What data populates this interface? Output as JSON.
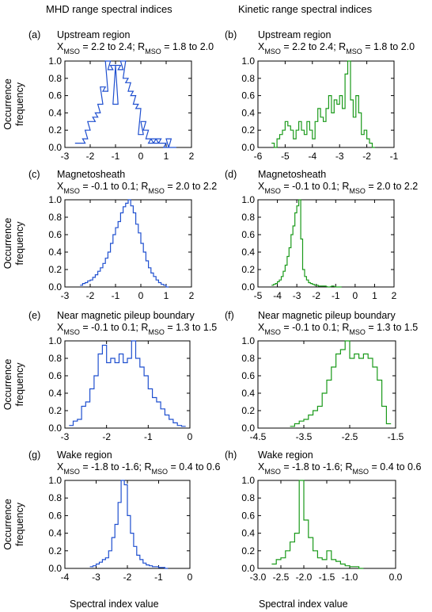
{
  "column_titles": [
    "MHD range spectral indices",
    "Kinetic range spectral indices"
  ],
  "ylabel": [
    "Occurrence",
    "frequency"
  ],
  "xlabel": "Spectral index value",
  "colors": {
    "mhd": "#1f4fcf",
    "kinetic": "#1a9a1a"
  },
  "chart_data": [
    {
      "type": "line",
      "step": true,
      "letter": "(a)",
      "title": "Upstream region",
      "subtitle": [
        "X",
        "MSO",
        " = 2.2  to 2.4; R",
        "MSO",
        " = 1.8 to 2.0"
      ],
      "xlim": [
        -3,
        2
      ],
      "xticks": [
        -3,
        -2,
        -1,
        0,
        1,
        2
      ],
      "ylim": [
        0,
        1
      ],
      "yticks": [
        "0.0",
        "0.2",
        "0.4",
        "0.6",
        "0.8",
        "1.0"
      ],
      "series": [
        {
          "color": "#1f4fcf",
          "x": [
            -2.6,
            -2.4,
            -2.3,
            -2.2,
            -2.1,
            -2.0,
            -1.9,
            -1.8,
            -1.7,
            -1.6,
            -1.5,
            -1.4,
            -1.3,
            -1.2,
            -1.1,
            -1.0,
            -0.9,
            -0.8,
            -0.7,
            -0.6,
            -0.5,
            -0.4,
            -0.3,
            -0.2,
            -0.1,
            0.0,
            0.1,
            0.2,
            0.3,
            0.4,
            0.5,
            0.6,
            0.7,
            0.8,
            0.9,
            1.0,
            1.1,
            1.2
          ],
          "y": [
            0.05,
            0.05,
            0.1,
            0.2,
            0.3,
            0.3,
            0.35,
            0.4,
            0.5,
            0.7,
            0.65,
            1.0,
            0.9,
            0.95,
            0.5,
            0.95,
            0.9,
            1.0,
            0.8,
            0.75,
            0.65,
            0.6,
            0.5,
            0.45,
            0.15,
            0.3,
            0.2,
            0.1,
            0.05,
            0.1,
            0.05,
            0.1,
            0.05,
            0.05,
            0.0,
            0.1,
            0.0,
            0.0
          ]
        }
      ]
    },
    {
      "type": "line",
      "step": true,
      "letter": "(b)",
      "title": "Upstream region",
      "subtitle": [
        "X",
        "MSO",
        " = 2.2  to 2.4; R",
        "MSO",
        " = 1.8 to 2.0"
      ],
      "xlim": [
        -6,
        -1
      ],
      "xticks": [
        -6,
        -5,
        -4,
        -3,
        -2,
        -1
      ],
      "ylim": [
        0,
        1
      ],
      "yticks": [
        "0.0",
        "0.2",
        "0.4",
        "0.6",
        "0.8",
        "1.0"
      ],
      "series": [
        {
          "color": "#1a9a1a",
          "x": [
            -5.5,
            -5.4,
            -5.3,
            -5.2,
            -5.1,
            -5.0,
            -4.9,
            -4.8,
            -4.7,
            -4.6,
            -4.5,
            -4.4,
            -4.3,
            -4.2,
            -4.1,
            -4.0,
            -3.9,
            -3.8,
            -3.7,
            -3.6,
            -3.5,
            -3.4,
            -3.3,
            -3.2,
            -3.1,
            -3.0,
            -2.9,
            -2.8,
            -2.7,
            -2.6,
            -2.5,
            -2.4,
            -2.3,
            -2.2,
            -2.1,
            -2.0,
            -1.9,
            -1.8
          ],
          "y": [
            0.05,
            0.0,
            0.1,
            0.15,
            0.2,
            0.3,
            0.25,
            0.2,
            0.1,
            0.2,
            0.3,
            0.2,
            0.15,
            0.3,
            0.2,
            0.1,
            0.3,
            0.45,
            0.35,
            0.3,
            0.45,
            0.6,
            0.4,
            0.55,
            0.5,
            0.6,
            0.45,
            0.85,
            1.0,
            0.55,
            0.35,
            0.6,
            0.4,
            0.15,
            0.2,
            0.1,
            0.05,
            0.0
          ]
        }
      ]
    },
    {
      "type": "line",
      "step": true,
      "letter": "(c)",
      "title": "Magnetosheath",
      "subtitle": [
        "X",
        "MSO",
        " = -0.1  to 0.1; R",
        "MSO",
        " = 2.0 to 2.2"
      ],
      "xlim": [
        -3,
        2
      ],
      "xticks": [
        -3,
        -2,
        -1,
        0,
        1,
        2
      ],
      "ylim": [
        0,
        1
      ],
      "yticks": [
        "0.0",
        "0.2",
        "0.4",
        "0.6",
        "0.8",
        "1.0"
      ],
      "series": [
        {
          "color": "#1f4fcf",
          "x": [
            -2.4,
            -2.3,
            -2.2,
            -2.1,
            -2.0,
            -1.9,
            -1.8,
            -1.7,
            -1.6,
            -1.5,
            -1.4,
            -1.3,
            -1.2,
            -1.1,
            -1.0,
            -0.9,
            -0.8,
            -0.7,
            -0.6,
            -0.5,
            -0.4,
            -0.3,
            -0.2,
            -0.1,
            0.0,
            0.1,
            0.2,
            0.3,
            0.4,
            0.5,
            0.6,
            0.7,
            0.8,
            0.9,
            1.0
          ],
          "y": [
            0.02,
            0.04,
            0.05,
            0.07,
            0.08,
            0.11,
            0.14,
            0.18,
            0.22,
            0.27,
            0.33,
            0.4,
            0.5,
            0.6,
            0.68,
            0.75,
            0.85,
            0.92,
            0.96,
            1.0,
            0.93,
            0.85,
            0.72,
            0.62,
            0.5,
            0.4,
            0.3,
            0.22,
            0.16,
            0.12,
            0.08,
            0.05,
            0.03,
            0.02,
            0.0
          ]
        }
      ]
    },
    {
      "type": "line",
      "step": true,
      "letter": "(d)",
      "title": "Magnetosheath",
      "subtitle": [
        "X",
        "MSO",
        " = -0.1  to 0.1; R",
        "MSO",
        " = 2.0 to 2.2"
      ],
      "xlim": [
        -5,
        2
      ],
      "xticks": [
        -5,
        -4,
        -3,
        -2,
        -1,
        0,
        1,
        2
      ],
      "ylim": [
        0,
        1
      ],
      "yticks": [
        "0.0",
        "0.2",
        "0.4",
        "0.6",
        "0.8",
        "1.0"
      ],
      "series": [
        {
          "color": "#1a9a1a",
          "x": [
            -4.3,
            -4.2,
            -4.1,
            -4.0,
            -3.9,
            -3.8,
            -3.7,
            -3.6,
            -3.5,
            -3.4,
            -3.3,
            -3.2,
            -3.1,
            -3.0,
            -2.9,
            -2.8,
            -2.7,
            -2.6,
            -2.5,
            -2.4,
            -2.3,
            -2.2,
            -2.1,
            -2.0,
            -1.9,
            -1.8,
            -1.6,
            -1.4,
            -1.2,
            -1.0,
            -0.8
          ],
          "y": [
            0.02,
            0.03,
            0.04,
            0.06,
            0.08,
            0.12,
            0.18,
            0.25,
            0.35,
            0.45,
            0.6,
            0.7,
            0.85,
            0.93,
            1.0,
            0.55,
            0.2,
            0.12,
            0.08,
            0.05,
            0.04,
            0.03,
            0.02,
            0.02,
            0.01,
            0.01,
            0.01,
            0.0,
            0.01,
            0.0,
            0.0
          ]
        }
      ]
    },
    {
      "type": "line",
      "step": true,
      "letter": "(e)",
      "title": "Near magnetic pileup boundary",
      "subtitle": [
        "X",
        "MSO",
        " = -0.1  to 0.1; R",
        "MSO",
        " = 1.3 to 1.5"
      ],
      "xlim": [
        -3,
        0
      ],
      "xticks": [
        -3,
        -2,
        -1,
        0
      ],
      "ylim": [
        0,
        1
      ],
      "yticks": [
        "0.0",
        "0.2",
        "0.4",
        "0.6",
        "0.8",
        "1.0"
      ],
      "series": [
        {
          "color": "#1f4fcf",
          "x": [
            -2.9,
            -2.8,
            -2.7,
            -2.6,
            -2.5,
            -2.4,
            -2.3,
            -2.2,
            -2.1,
            -2.0,
            -1.9,
            -1.8,
            -1.7,
            -1.6,
            -1.5,
            -1.4,
            -1.3,
            -1.2,
            -1.1,
            -1.0,
            -0.9,
            -0.8,
            -0.7,
            -0.6,
            -0.5,
            -0.4,
            -0.3,
            -0.2
          ],
          "y": [
            0.03,
            0.08,
            0.1,
            0.25,
            0.3,
            0.45,
            0.6,
            0.85,
            0.95,
            0.75,
            0.8,
            0.75,
            0.85,
            0.75,
            0.8,
            1.0,
            0.8,
            0.7,
            0.6,
            0.45,
            0.35,
            0.3,
            0.22,
            0.15,
            0.1,
            0.06,
            0.03,
            0.02
          ]
        }
      ]
    },
    {
      "type": "line",
      "step": true,
      "letter": "(f)",
      "title": "Near magnetic pileup boundary",
      "subtitle": [
        "X",
        "MSO",
        " = -0.1  to 0.1; R",
        "MSO",
        " = 1.3 to 1.5"
      ],
      "xlim": [
        -4.5,
        -1.5
      ],
      "xticks": [
        -4.5,
        -3.5,
        -2.5,
        -1.5
      ],
      "ylim": [
        0,
        1
      ],
      "yticks": [
        "0.0",
        "0.2",
        "0.4",
        "0.6",
        "0.8",
        "1.0"
      ],
      "series": [
        {
          "color": "#1a9a1a",
          "x": [
            -3.8,
            -3.7,
            -3.6,
            -3.5,
            -3.4,
            -3.3,
            -3.2,
            -3.1,
            -3.0,
            -2.9,
            -2.8,
            -2.7,
            -2.6,
            -2.5,
            -2.4,
            -2.3,
            -2.2,
            -2.1,
            -2.0,
            -1.9,
            -1.8,
            -1.7
          ],
          "y": [
            0.02,
            0.05,
            0.08,
            0.1,
            0.15,
            0.2,
            0.25,
            0.4,
            0.55,
            0.7,
            0.85,
            0.9,
            1.0,
            0.8,
            0.85,
            0.8,
            0.85,
            0.8,
            0.7,
            0.55,
            0.25,
            0.05
          ]
        }
      ]
    },
    {
      "type": "line",
      "step": true,
      "letter": "(g)",
      "title": "Wake region",
      "subtitle": [
        "X",
        "MSO",
        " = -1.8  to -1.6; R",
        "MSO",
        " = 0.4 to 0.6"
      ],
      "xlim": [
        -4,
        0
      ],
      "xticks": [
        -4,
        -3,
        -2,
        -1,
        0
      ],
      "ylim": [
        0,
        1
      ],
      "yticks": [
        "0.0",
        "0.2",
        "0.4",
        "0.6",
        "0.8",
        "1.0"
      ],
      "series": [
        {
          "color": "#1f4fcf",
          "x": [
            -3.2,
            -3.1,
            -3.0,
            -2.9,
            -2.8,
            -2.7,
            -2.6,
            -2.5,
            -2.4,
            -2.3,
            -2.2,
            -2.1,
            -2.0,
            -1.9,
            -1.8,
            -1.7,
            -1.6,
            -1.5,
            -1.4,
            -1.3,
            -1.2,
            -1.1,
            -1.0,
            -0.9,
            -0.8
          ],
          "y": [
            0.02,
            0.03,
            0.05,
            0.07,
            0.1,
            0.12,
            0.2,
            0.35,
            0.5,
            0.75,
            1.0,
            0.95,
            0.6,
            0.4,
            0.25,
            0.15,
            0.1,
            0.06,
            0.04,
            0.03,
            0.02,
            0.02,
            0.01,
            0.01,
            0.0
          ]
        }
      ]
    },
    {
      "type": "line",
      "step": true,
      "letter": "(h)",
      "title": "Wake region",
      "subtitle": [
        "X",
        "MSO",
        " = -1.8  to -1.6; R",
        "MSO",
        " = 0.4 to 0.6"
      ],
      "xlim": [
        -3.0,
        0.0
      ],
      "xticks": [
        "-3.0",
        "-2.5",
        "-2.0",
        "-1.5",
        "-1.0",
        "0.0"
      ],
      "xtick_values": [
        -3.0,
        -2.5,
        -2.0,
        -1.5,
        -1.0,
        0.0
      ],
      "ylim": [
        0,
        1
      ],
      "yticks": [
        "0.0",
        "0.2",
        "0.4",
        "0.6",
        "0.8",
        "1.0"
      ],
      "series": [
        {
          "color": "#1a9a1a",
          "x": [
            -2.7,
            -2.6,
            -2.5,
            -2.4,
            -2.3,
            -2.2,
            -2.1,
            -2.0,
            -1.9,
            -1.8,
            -1.7,
            -1.6,
            -1.5,
            -1.4,
            -1.3,
            -1.2,
            -1.1,
            -1.0,
            -0.9,
            -0.8
          ],
          "y": [
            0.05,
            0.1,
            0.12,
            0.2,
            0.3,
            0.4,
            1.0,
            0.55,
            0.35,
            0.2,
            0.12,
            0.1,
            0.2,
            0.1,
            0.08,
            0.05,
            0.03,
            0.02,
            0.02,
            0.0
          ]
        }
      ]
    }
  ]
}
